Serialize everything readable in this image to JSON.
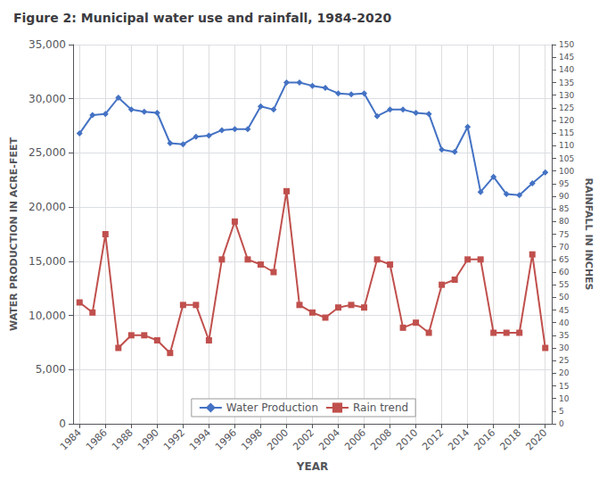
{
  "chart_data": {
    "type": "line",
    "title": "Figure 2: Municipal water use and rainfall, 1984-2020",
    "xlabel": "YEAR",
    "ylabel": "WATER PRODUCTION IN ACRE-FEET",
    "y2label": "RAINFALL IN INCHES",
    "x": [
      1984,
      1985,
      1986,
      1987,
      1988,
      1989,
      1990,
      1991,
      1992,
      1993,
      1994,
      1995,
      1996,
      1997,
      1998,
      1999,
      2000,
      2001,
      2002,
      2003,
      2004,
      2005,
      2006,
      2007,
      2008,
      2009,
      2010,
      2011,
      2012,
      2013,
      2014,
      2015,
      2016,
      2017,
      2018,
      2019,
      2020
    ],
    "series": [
      {
        "name": "Water Production",
        "color": "#4472C4",
        "marker": "diamond",
        "axis": "y",
        "values": [
          26800,
          28500,
          28600,
          30100,
          29000,
          28800,
          28700,
          25900,
          25800,
          26500,
          26600,
          27100,
          27200,
          27200,
          29300,
          29000,
          31500,
          31500,
          31200,
          31000,
          30500,
          30400,
          30500,
          28400,
          29000,
          29000,
          28700,
          28600,
          25300,
          25100,
          27400,
          21400,
          22800,
          21200,
          21100,
          22200,
          23200
        ]
      },
      {
        "name": "Rain trend",
        "color": "#C0504D",
        "marker": "square",
        "axis": "y2",
        "values": [
          48,
          44,
          75,
          30,
          35,
          35,
          33,
          28,
          47,
          47,
          33,
          65,
          80,
          65,
          63,
          60,
          92,
          47,
          44,
          42,
          46,
          47,
          46,
          65,
          63,
          38,
          40,
          36,
          55,
          57,
          65,
          65,
          36,
          36,
          36,
          67,
          30
        ]
      }
    ],
    "xlim": [
      1983.5,
      2020.5
    ],
    "xticks": [
      1984,
      1986,
      1988,
      1990,
      1992,
      1994,
      1996,
      1998,
      2000,
      2002,
      2004,
      2006,
      2008,
      2010,
      2012,
      2014,
      2016,
      2018,
      2020
    ],
    "ylim": [
      0,
      35000
    ],
    "yticks": [
      0,
      {
        "value": 5000,
        "label": "5,000"
      },
      {
        "value": 10000,
        "label": "10,000"
      },
      {
        "value": 15000,
        "label": "15,000"
      },
      {
        "value": 20000,
        "label": "20,000"
      },
      {
        "value": 25000,
        "label": "25,000"
      },
      {
        "value": 30000,
        "label": "30,000"
      },
      {
        "value": 35000,
        "label": "35,000"
      }
    ],
    "y2lim": [
      0,
      150
    ],
    "y2ticks": [
      0,
      5,
      10,
      15,
      20,
      25,
      30,
      35,
      40,
      45,
      50,
      55,
      60,
      65,
      70,
      75,
      80,
      85,
      90,
      95,
      100,
      105,
      110,
      115,
      120,
      125,
      130,
      135,
      140,
      145,
      150
    ],
    "grid": true,
    "legend": "bottom"
  }
}
